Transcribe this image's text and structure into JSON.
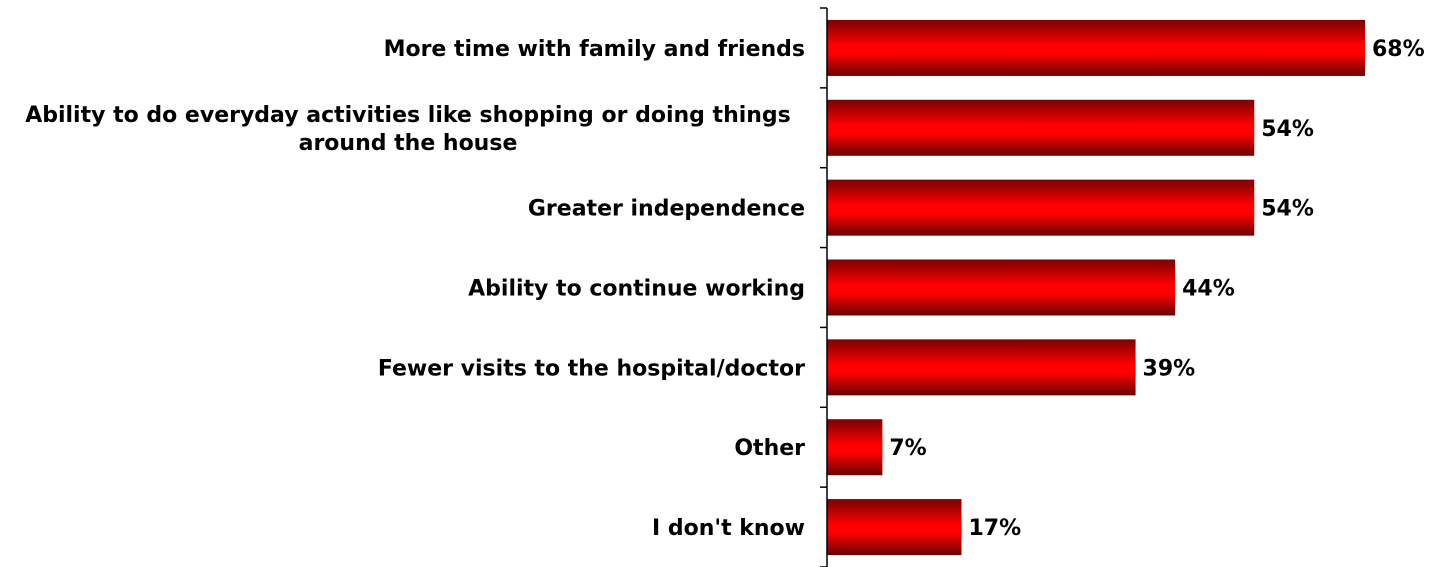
{
  "chart_data": {
    "type": "bar",
    "orientation": "horizontal",
    "categories": [
      [
        "More time with family and friends"
      ],
      [
        "Ability to do everyday activities like shopping or doing things",
        "around the house"
      ],
      [
        "Greater independence"
      ],
      [
        "Ability to continue working"
      ],
      [
        "Fewer visits to the hospital/doctor"
      ],
      [
        "Other"
      ],
      [
        "I don't know"
      ]
    ],
    "values": [
      68,
      54,
      54,
      44,
      39,
      7,
      17
    ],
    "value_labels": [
      "68%",
      "54%",
      "54%",
      "44%",
      "39%",
      "7%",
      "17%"
    ],
    "unit": "%",
    "xlim": [
      0,
      68
    ],
    "colors": {
      "bar_center": "#ff0000",
      "bar_edge": "#7a0000"
    }
  }
}
